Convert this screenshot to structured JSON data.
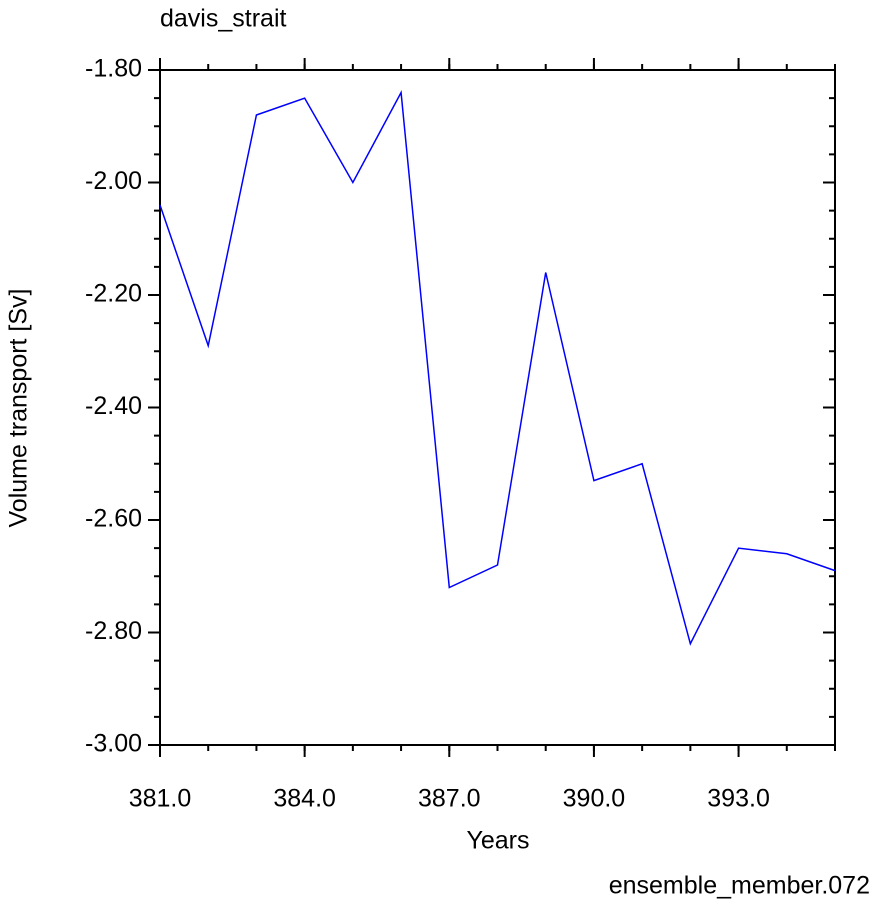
{
  "chart_data": {
    "type": "line",
    "title": "davis_strait",
    "xlabel": "Years",
    "ylabel": "Volume transport [Sv]",
    "annotation": "ensemble_member.072",
    "x": [
      381,
      382,
      383,
      384,
      385,
      386,
      387,
      388,
      389,
      390,
      391,
      392,
      393,
      394,
      395
    ],
    "series": [
      {
        "name": "davis_strait",
        "color": "#0000ff",
        "values": [
          -2.04,
          -2.29,
          -1.88,
          -1.85,
          -2.0,
          -1.84,
          -2.72,
          -2.68,
          -2.16,
          -2.53,
          -2.5,
          -2.82,
          -2.65,
          -2.66,
          -2.69
        ]
      }
    ],
    "xlim": [
      381,
      395
    ],
    "ylim": [
      -3.0,
      -1.8
    ],
    "xticks": [
      {
        "value": 381,
        "label": "381.0"
      },
      {
        "value": 384,
        "label": "384.0"
      },
      {
        "value": 387,
        "label": "387.0"
      },
      {
        "value": 390,
        "label": "390.0"
      },
      {
        "value": 393,
        "label": "393.0"
      }
    ],
    "yticks": [
      {
        "value": -1.8,
        "label": "-1.80"
      },
      {
        "value": -2.0,
        "label": "-2.00"
      },
      {
        "value": -2.2,
        "label": "-2.20"
      },
      {
        "value": -2.4,
        "label": "-2.40"
      },
      {
        "value": -2.6,
        "label": "-2.60"
      },
      {
        "value": -2.8,
        "label": "-2.80"
      },
      {
        "value": -3.0,
        "label": "-3.00"
      }
    ],
    "annotation_color": "#0000ff"
  }
}
